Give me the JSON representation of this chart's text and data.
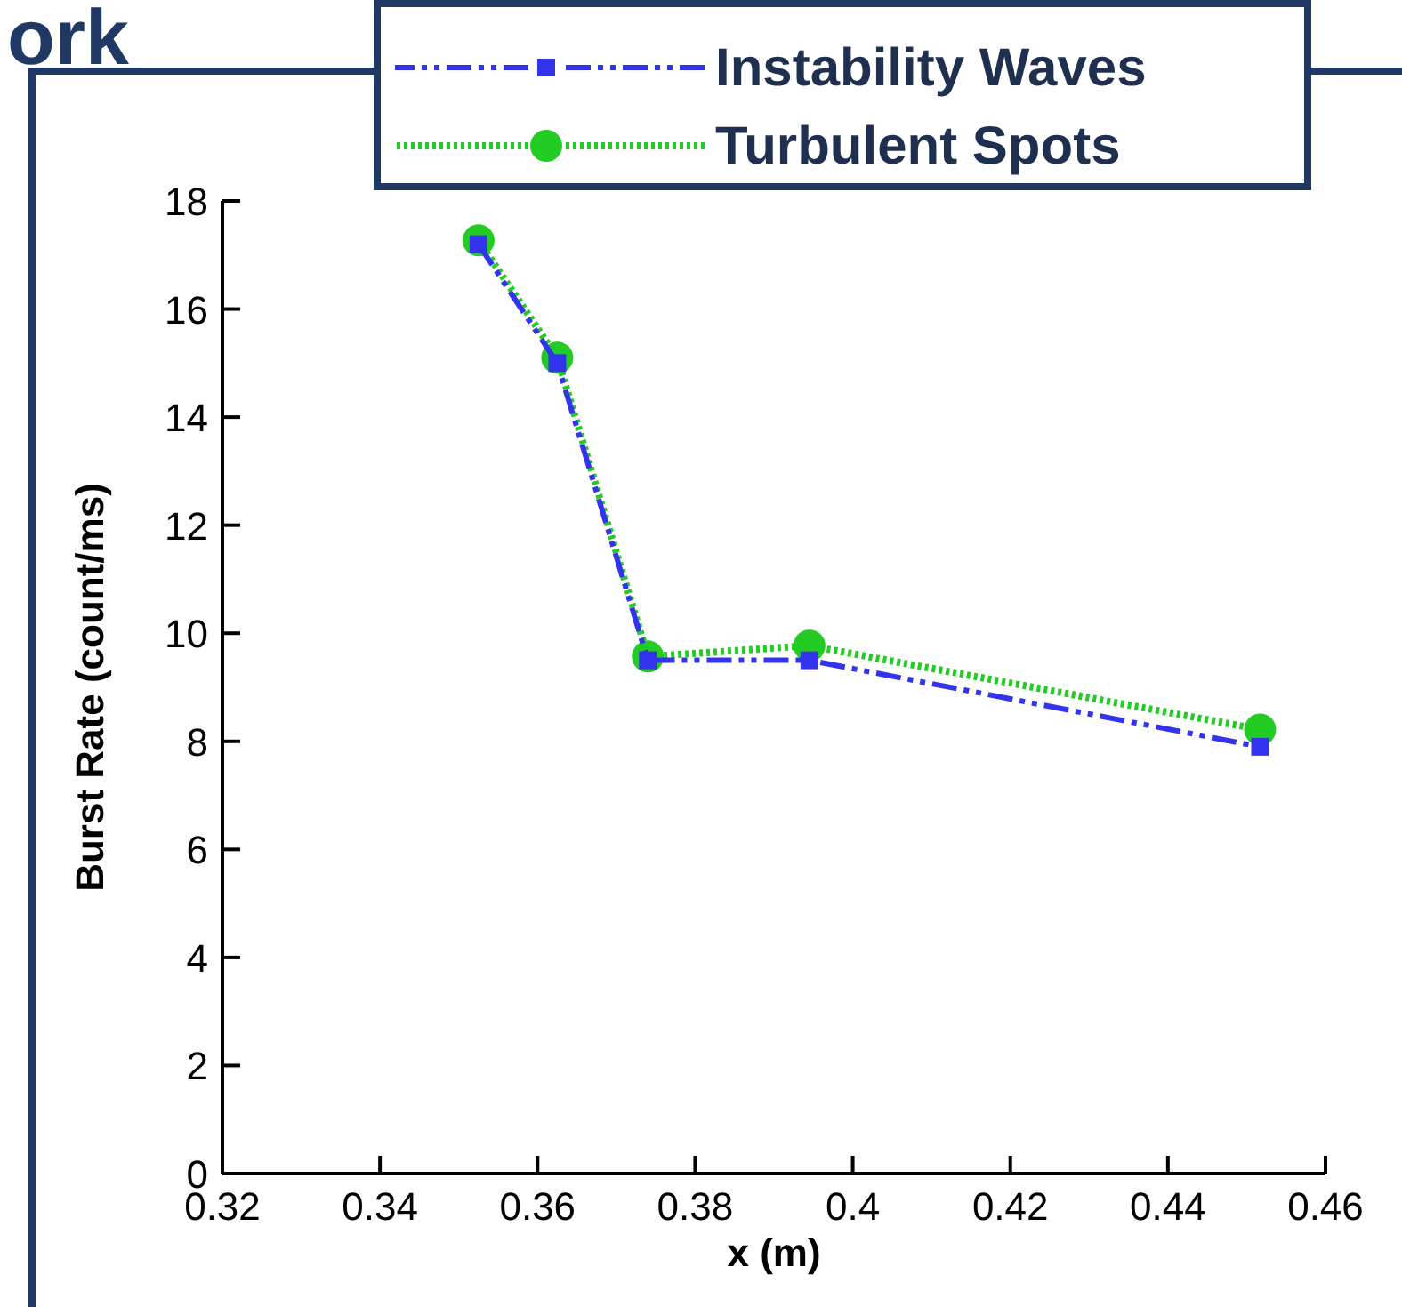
{
  "chart_data": {
    "type": "line",
    "title": "ork",
    "xlabel": "x (m)",
    "ylabel": "Burst Rate (count/ms)",
    "xlim": [
      0.32,
      0.46
    ],
    "xticks": [
      {
        "value": 0.32,
        "label": "0.32"
      },
      {
        "value": 0.34,
        "label": "0.34"
      },
      {
        "value": 0.36,
        "label": "0.36"
      },
      {
        "value": 0.38,
        "label": "0.38"
      },
      {
        "value": 0.4,
        "label": "0.4"
      },
      {
        "value": 0.42,
        "label": "0.42"
      },
      {
        "value": 0.44,
        "label": "0.44"
      },
      {
        "value": 0.46,
        "label": "0.46"
      }
    ],
    "ylim": [
      0,
      18
    ],
    "yticks": [
      0,
      2,
      4,
      6,
      8,
      10,
      12,
      14,
      16,
      18
    ],
    "grid": false,
    "legend": "top right",
    "series": [
      {
        "name": "Instability Waves",
        "color": "#3333ee",
        "x": [
          0.3525,
          0.3625,
          0.374,
          0.3945,
          0.4517
        ],
        "values": [
          17.2,
          15.0,
          9.5,
          9.5,
          7.9
        ],
        "marker": "square",
        "line_style": "dashdotdot"
      },
      {
        "name": "Turbulent Spots",
        "color": "#22cc22",
        "x": [
          0.3525,
          0.3625,
          0.374,
          0.3945,
          0.4517
        ],
        "values": [
          17.27,
          15.1,
          9.57,
          9.77,
          8.22
        ],
        "marker": "circle",
        "line_style": "dotted"
      }
    ]
  }
}
